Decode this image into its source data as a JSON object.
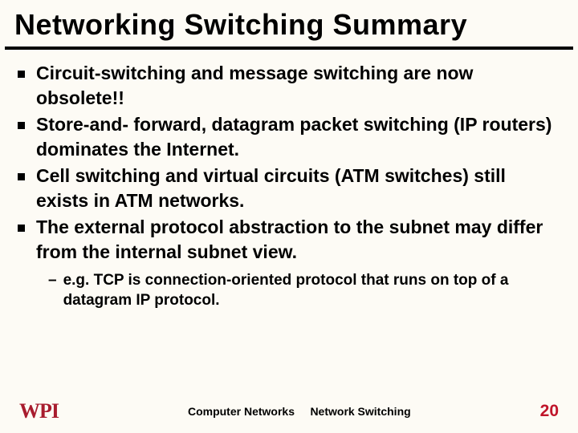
{
  "slide": {
    "title": "Networking Switching Summary",
    "title_underline_color": "#000000",
    "background_color": "#fdfbf5",
    "bullets": [
      "Circuit-switching and message switching are now obsolete!!",
      "Store-and- forward, datagram packet switching (IP routers) dominates the Internet.",
      "Cell switching and virtual circuits (ATM switches) still exists in ATM networks.",
      "The external protocol abstraction to the subnet may differ from the internal subnet view."
    ],
    "sub_bullet": "e.g. TCP is connection-oriented protocol that runs on top of a datagram IP protocol.",
    "bullet_fontsize": 23,
    "sub_fontsize": 19,
    "text_color": "#000000"
  },
  "footer": {
    "logo_text": "WPI",
    "logo_color": "#a81c2e",
    "center_left": "Computer Networks",
    "center_right": "Network Switching",
    "page_number": "20",
    "page_color": "#c0152a"
  }
}
